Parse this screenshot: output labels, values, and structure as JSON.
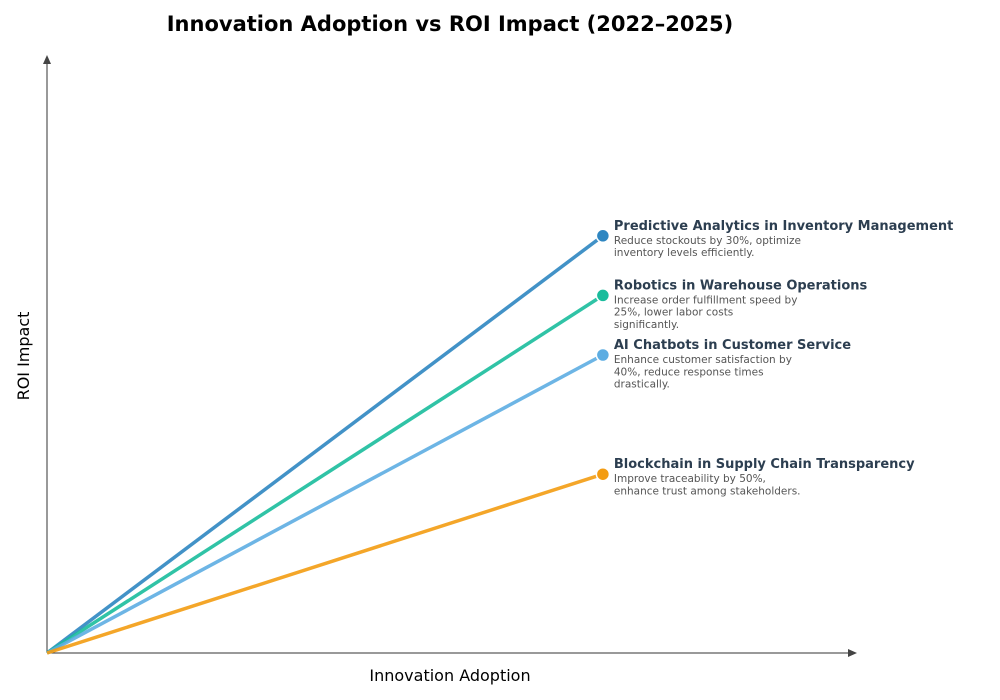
{
  "chart_data": {
    "type": "line",
    "title": "Innovation Adoption vs ROI Impact (2022–2025)",
    "xlabel": "Innovation Adoption",
    "ylabel": "ROI Impact",
    "xlim": [
      0,
      1.02
    ],
    "ylim": [
      0,
      1.0
    ],
    "grid": false,
    "ticks_visible": false,
    "series": [
      {
        "name": "Predictive Analytics in Inventory Management",
        "description": [
          "Reduce stockouts by 30%, optimize",
          "inventory levels efficiently."
        ],
        "x": [
          0,
          0.7
        ],
        "y": [
          0,
          0.7
        ],
        "color": "#2e86c1"
      },
      {
        "name": "Robotics in Warehouse Operations",
        "description": [
          "Increase order fulfillment speed by",
          "25%, lower labor costs",
          "significantly."
        ],
        "x": [
          0,
          0.7
        ],
        "y": [
          0,
          0.6
        ],
        "color": "#1abc9c"
      },
      {
        "name": "AI Chatbots in Customer Service",
        "description": [
          "Enhance customer satisfaction by",
          "40%, reduce response times",
          "drastically."
        ],
        "x": [
          0,
          0.7
        ],
        "y": [
          0,
          0.5
        ],
        "color": "#5dade2"
      },
      {
        "name": "Blockchain in Supply Chain Transparency",
        "description": [
          "Improve traceability by 50%,",
          "enhance trust among stakeholders."
        ],
        "x": [
          0,
          0.7
        ],
        "y": [
          0,
          0.3
        ],
        "color": "#f39c12"
      }
    ]
  }
}
